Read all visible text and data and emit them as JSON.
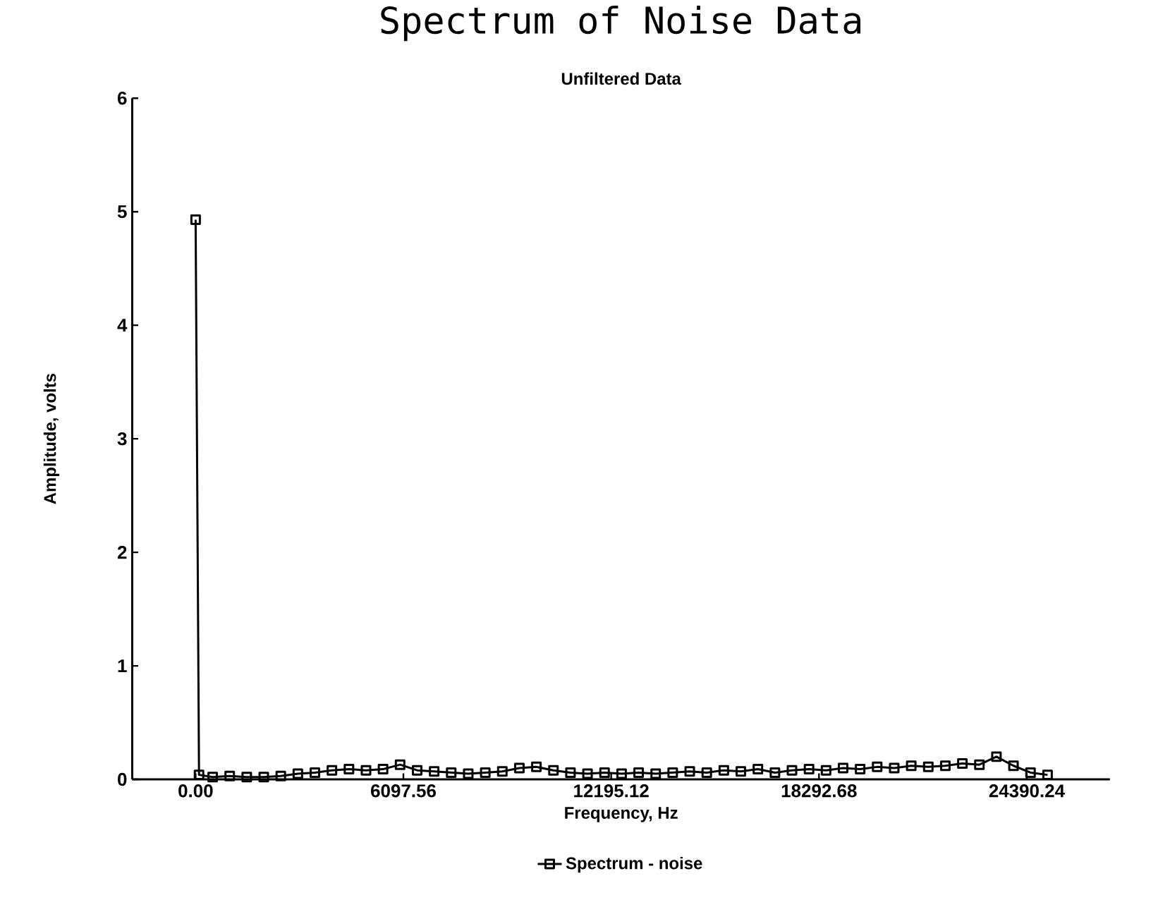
{
  "chart_data": {
    "type": "line",
    "title": "Spectrum of Noise Data",
    "subtitle": "Unfiltered Data",
    "xlabel": "Frequency,  Hz",
    "ylabel": "Amplitude, volts",
    "xlim": [
      -1860,
      26830
    ],
    "ylim": [
      0,
      6
    ],
    "xticks": [
      {
        "value": 0,
        "label": "0.00"
      },
      6097.56,
      12195.12,
      18292.68,
      24390.24
    ],
    "yticks": [
      0,
      1,
      2,
      3,
      4,
      5,
      6
    ],
    "marker": "square",
    "legend": "bottom",
    "series": [
      {
        "name": "Spectrum - noise",
        "color": "#000000",
        "x": [
          0,
          100,
          500,
          1000,
          1500,
          2000,
          2500,
          3000,
          3500,
          4000,
          4500,
          5000,
          5500,
          6000,
          6500,
          7000,
          7500,
          8000,
          8500,
          9000,
          9500,
          10000,
          10500,
          11000,
          11500,
          12000,
          12500,
          13000,
          13500,
          14000,
          14500,
          15000,
          15500,
          16000,
          16500,
          17000,
          17500,
          18000,
          18500,
          19000,
          19500,
          20000,
          20500,
          21000,
          21500,
          22000,
          22500,
          23000,
          23500,
          24000,
          24500,
          25000
        ],
        "values": [
          4.93,
          0.04,
          0.02,
          0.03,
          0.02,
          0.02,
          0.03,
          0.05,
          0.06,
          0.08,
          0.09,
          0.08,
          0.09,
          0.13,
          0.08,
          0.07,
          0.06,
          0.05,
          0.06,
          0.07,
          0.1,
          0.11,
          0.08,
          0.06,
          0.05,
          0.06,
          0.05,
          0.06,
          0.05,
          0.06,
          0.07,
          0.06,
          0.08,
          0.07,
          0.09,
          0.06,
          0.08,
          0.09,
          0.08,
          0.1,
          0.09,
          0.11,
          0.1,
          0.12,
          0.11,
          0.12,
          0.14,
          0.13,
          0.2,
          0.12,
          0.06,
          0.04
        ]
      }
    ]
  }
}
